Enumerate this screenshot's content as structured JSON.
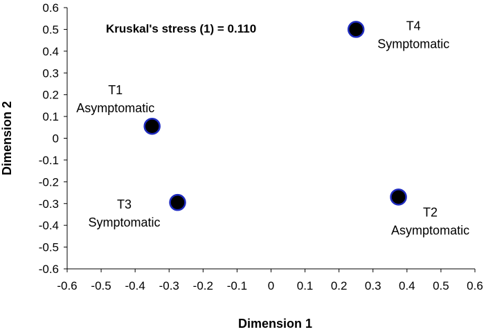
{
  "chart_data": {
    "type": "scatter",
    "title": "",
    "xlabel": "Dimension 1",
    "ylabel": "Dimension 2",
    "xlim": [
      -0.6,
      0.6
    ],
    "ylim": [
      -0.6,
      0.6
    ],
    "xticks": [
      "-0.6",
      "-0.5",
      "-0.4",
      "-0.3",
      "-0.2",
      "-0.1",
      "0",
      "0.1",
      "0.2",
      "0.3",
      "0.4",
      "0.5",
      "0.6"
    ],
    "yticks": [
      "0.6",
      "0.5",
      "0.4",
      "0.3",
      "0.2",
      "0.1",
      "0",
      "-0.1",
      "-0.2",
      "-0.3",
      "-0.4",
      "-0.5",
      "-0.6"
    ],
    "grid": false,
    "annotation": "Kruskal's stress (1) = 0.110",
    "points": [
      {
        "label": "T1",
        "sublabel": "Asymptomatic",
        "x": -0.35,
        "y": 0.055,
        "label_side": "above-left"
      },
      {
        "label": "T2",
        "sublabel": "Asymptomatic",
        "x": 0.375,
        "y": -0.27,
        "label_side": "below-right"
      },
      {
        "label": "T3",
        "sublabel": "Symptomatic",
        "x": -0.275,
        "y": -0.295,
        "label_side": "left"
      },
      {
        "label": "T4",
        "sublabel": "Symptomatic",
        "x": 0.25,
        "y": 0.5,
        "label_side": "right"
      }
    ],
    "colors": {
      "marker_fill": "#000000",
      "marker_stroke": "#1f2bbf",
      "axis": "#000000"
    }
  }
}
